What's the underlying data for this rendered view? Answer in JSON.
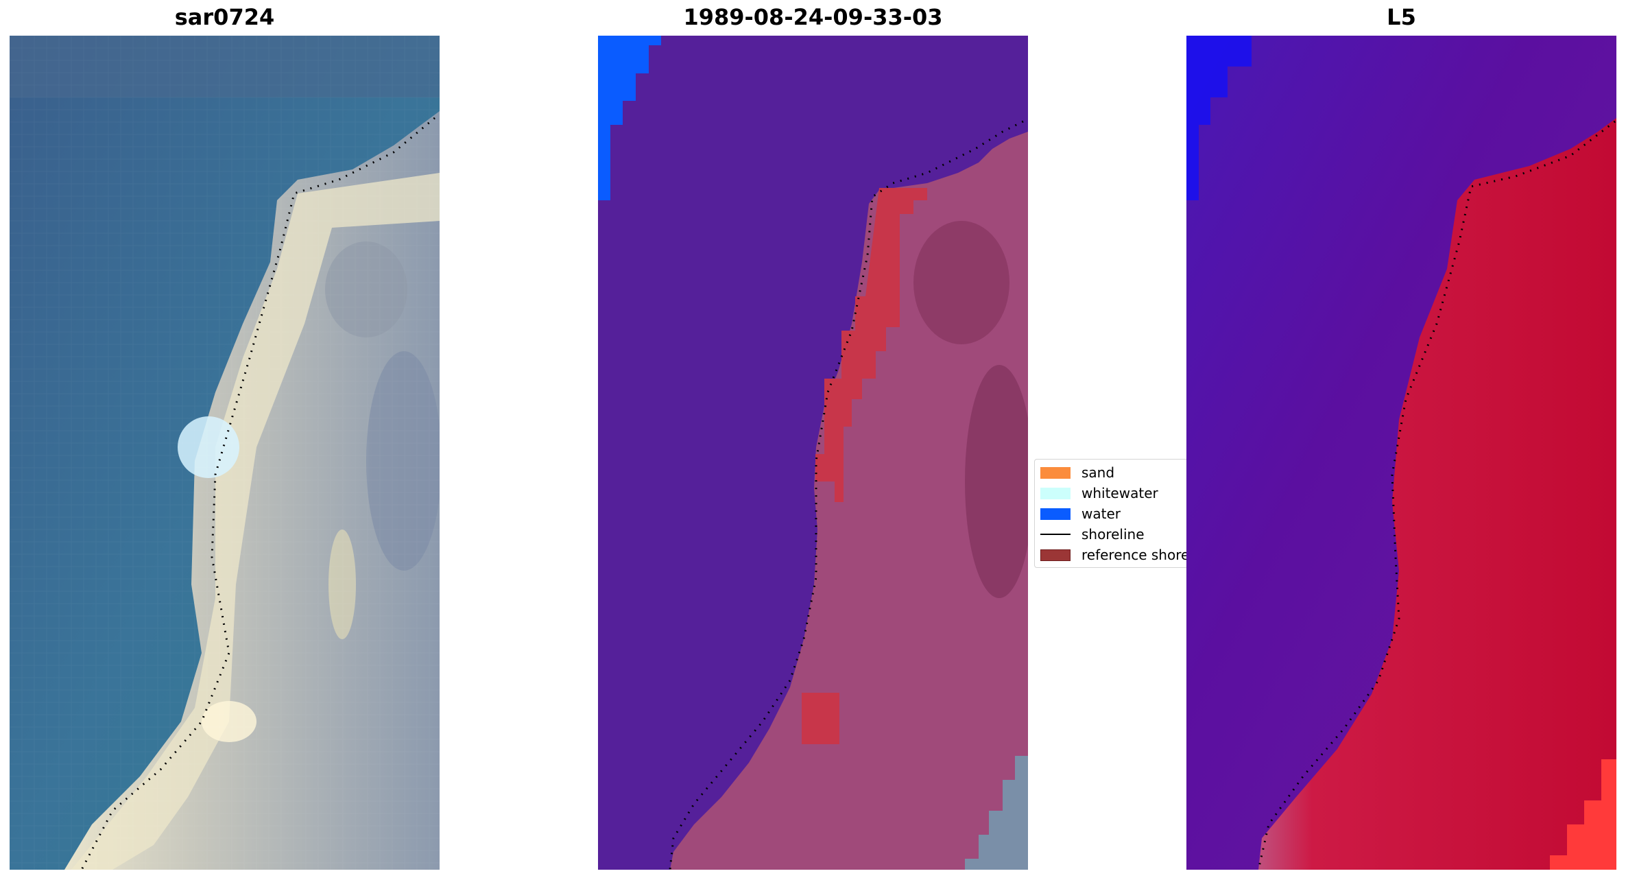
{
  "panels": [
    {
      "title": "sar0724"
    },
    {
      "title": "1989-08-24-09-33-03"
    },
    {
      "title": "L5"
    }
  ],
  "legend": {
    "items": [
      {
        "label": "sand",
        "kind": "patch",
        "color": "#fb8c3c",
        "edge": "none"
      },
      {
        "label": "whitewater",
        "kind": "patch",
        "color": "#ccfffc",
        "edge": "none"
      },
      {
        "label": "water",
        "kind": "patch",
        "color": "#0a5cff",
        "edge": "none"
      },
      {
        "label": "shoreline",
        "kind": "line",
        "color": "#000000"
      },
      {
        "label": "reference shoreline",
        "kind": "patch",
        "color": "#9b3636",
        "edge": "#6e1d1d"
      }
    ]
  },
  "colors": {
    "rgb_water": "#3b6f99",
    "rgb_land": "#a9b6c0",
    "class_water": "#55209a",
    "class_land": "#a04a7a",
    "class_sand_overlay": "#c8364a",
    "class_blue": "#0a5cff",
    "ndwi_water": "#5b0fa0",
    "ndwi_land": "#c50a35"
  }
}
